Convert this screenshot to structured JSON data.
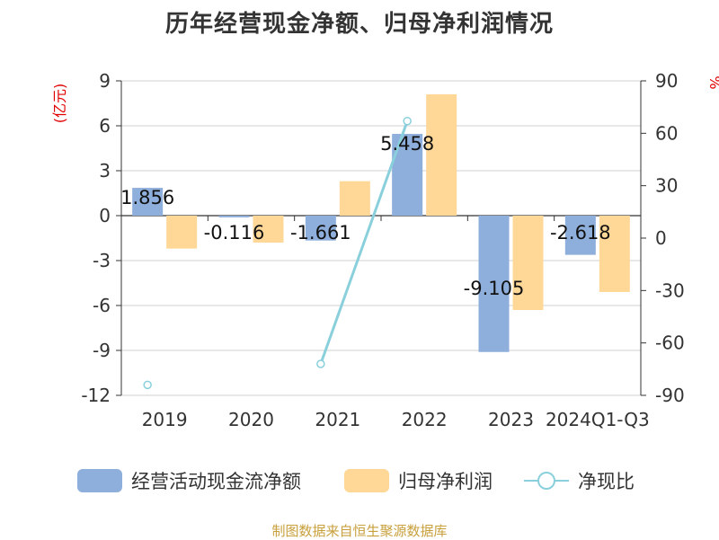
{
  "title": "历年经营现金净额、归母净利润情况",
  "source": "制图数据来自恒生聚源数据库",
  "chart_data": {
    "type": "bar",
    "categories": [
      "2019",
      "2020",
      "2021",
      "2022",
      "2023",
      "2024Q1-Q3"
    ],
    "left_unit": "(亿元)",
    "right_unit": "%",
    "left_ylim": [
      -12,
      9
    ],
    "left_ticks": [
      9,
      6,
      3,
      0,
      -3,
      -6,
      -9,
      -12
    ],
    "right_ylim": [
      -90,
      90
    ],
    "right_ticks": [
      90,
      60,
      30,
      0,
      -30,
      -60,
      -90
    ],
    "grid": true,
    "legend_position": "bottom",
    "series": [
      {
        "name": "经营活动现金流净额",
        "kind": "bar",
        "axis": "left",
        "color": "#8eaedb",
        "values": [
          1.856,
          -0.116,
          -1.661,
          5.458,
          -9.105,
          -2.618
        ],
        "labels": [
          "1.856",
          "-0.116",
          "-1.661",
          "5.458",
          "-9.105",
          "-2.618"
        ]
      },
      {
        "name": "归母净利润",
        "kind": "bar",
        "axis": "left",
        "color": "#ffd898",
        "values": [
          -2.2,
          -1.8,
          2.3,
          8.1,
          -6.3,
          -5.1
        ]
      },
      {
        "name": "净现比",
        "kind": "line",
        "axis": "right",
        "color": "#8ad0dc",
        "values": [
          -84,
          null,
          -72,
          67,
          null,
          null
        ]
      }
    ]
  }
}
